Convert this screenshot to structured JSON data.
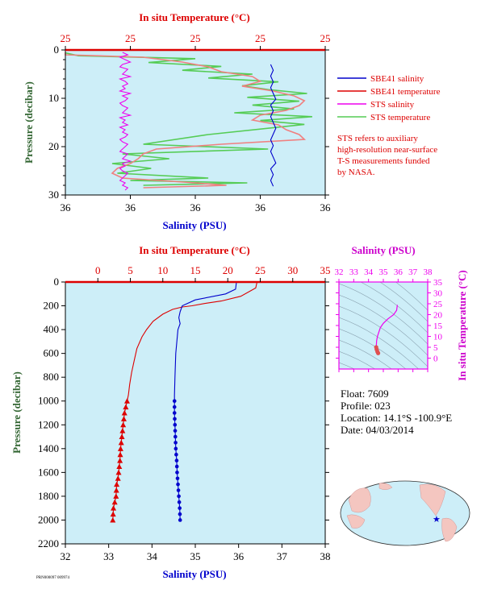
{
  "colors": {
    "plot_bg": "#cdeef8",
    "temp": "#dd0000",
    "sal": "#0000cc",
    "sts_sal": "#ee00ee",
    "sts_temp": "#55cc55",
    "ts_bg": "#cdeef8",
    "pressure_label": "#336633"
  },
  "legend": {
    "sbe41_salinity": "SBE41 salinity",
    "sbe41_temperature": "SBE41 temperature",
    "sts_salinity": "STS salinity",
    "sts_temperature": "STS temperature",
    "note_lines": [
      "STS refers to auxiliary",
      "high-resolution near-surface",
      "T-S measurements funded",
      "by NASA."
    ]
  },
  "info": {
    "float": "Float:  7609",
    "profile": "Profile:  023",
    "location": "Location:  14.1°S  -100.9°E",
    "date": "Date:  04/03/2014"
  },
  "footer_text": "PRN000097 009974",
  "chart_data": [
    {
      "type": "line",
      "id": "top-near-surface",
      "top_axis_label": "In situ Temperature (°C)",
      "top_ticks": [
        "25",
        "25",
        "25",
        "25",
        "25"
      ],
      "xlabel": "Salinity (PSU)",
      "bottom_ticks": [
        "36",
        "36",
        "36",
        "36",
        "36"
      ],
      "ylabel": "Pressure (decibar)",
      "y_ticks": [
        0,
        10,
        20,
        30
      ],
      "ylim": [
        0,
        30
      ],
      "series": [
        {
          "name": "STS salinity",
          "x_frac": [
            0.22,
            0.24,
            0.21,
            0.23,
            0.25,
            0.22,
            0.21,
            0.24,
            0.23,
            0.22,
            0.25,
            0.21,
            0.23,
            0.24,
            0.22,
            0.23,
            0.21,
            0.25,
            0.22,
            0.24,
            0.23,
            0.21,
            0.22,
            0.24,
            0.23,
            0.22,
            0.25,
            0.21,
            0.23,
            0.22,
            0.24,
            0.21,
            0.23,
            0.22,
            0.24,
            0.23,
            0.21,
            0.22,
            0.24,
            0.23,
            0.22,
            0.21,
            0.24,
            0.23,
            0.22,
            0.25,
            0.22,
            0.23,
            0.21,
            0.22,
            0.24,
            0.23,
            0.22,
            0.21,
            0.23,
            0.22,
            0.24,
            0.23
          ],
          "y": [
            0.5,
            1,
            1.5,
            2,
            2.5,
            3,
            3.5,
            4,
            4.5,
            5,
            5.5,
            6,
            6.5,
            7,
            7.5,
            8,
            8.5,
            9,
            9.5,
            10,
            10.5,
            11,
            11.5,
            12,
            12.5,
            13,
            13.5,
            14,
            14.5,
            15,
            15.5,
            16,
            16.5,
            17,
            17.5,
            18,
            18.5,
            19,
            19.5,
            20,
            20.5,
            21,
            21.5,
            22,
            22.5,
            23,
            23.5,
            24,
            24.5,
            25,
            25.5,
            26,
            26.5,
            27,
            27.5,
            28,
            28.5,
            29
          ]
        },
        {
          "name": "SBE41 salinity",
          "x_frac": [
            0.79,
            0.8,
            0.79,
            0.8,
            0.79,
            0.8,
            0.81,
            0.79,
            0.8,
            0.79,
            0.8,
            0.81,
            0.8,
            0.79,
            0.8,
            0.79,
            0.8,
            0.81,
            0.79,
            0.8,
            0.79,
            0.8
          ],
          "y": [
            3,
            4.2,
            5.4,
            6.6,
            7.8,
            9,
            10.2,
            11.4,
            12.6,
            13.8,
            15,
            16.2,
            17.4,
            18.6,
            19.8,
            21,
            22.2,
            23.4,
            24.6,
            25.8,
            27,
            28.2
          ]
        },
        {
          "name": "SBE41 temperature",
          "x_frac": [
            0.0,
            0.0,
            0.3,
            0.45,
            0.55,
            0.6,
            0.72,
            0.75,
            0.68,
            0.8,
            0.88,
            0.92,
            0.9,
            0.85,
            0.75,
            0.72,
            0.82,
            0.85,
            0.9,
            0.92,
            0.6,
            0.35,
            0.3,
            0.28,
            0.25,
            0.2,
            0.18,
            0.22,
            0.5,
            0.62,
            0.3
          ],
          "y": [
            0.5,
            1,
            1.5,
            2.5,
            3.5,
            4.5,
            5.5,
            6.5,
            7.5,
            8.5,
            9.5,
            10.5,
            11.5,
            12.5,
            13.5,
            14.5,
            15.5,
            16.5,
            17.5,
            18.5,
            19.5,
            20.5,
            21.5,
            22.5,
            23.5,
            24.5,
            25.5,
            26.5,
            27.5,
            28,
            28.5
          ]
        },
        {
          "name": "STS temperature",
          "x_frac": [
            0.0,
            0.05,
            0.5,
            0.32,
            0.6,
            0.45,
            0.72,
            0.55,
            0.82,
            0.68,
            0.78,
            0.93,
            0.7,
            0.9,
            0.72,
            0.88,
            0.65,
            0.95,
            0.75,
            0.92,
            0.55,
            0.3,
            0.78,
            0.22,
            0.4,
            0.18,
            0.33,
            0.2,
            0.55,
            0.25,
            0.7,
            0.3
          ],
          "y": [
            0.6,
            1.2,
            1.8,
            2.6,
            3.4,
            4.2,
            5.0,
            5.8,
            6.6,
            7.4,
            8.2,
            9.0,
            9.8,
            10.6,
            11.4,
            12.2,
            13.0,
            13.8,
            14.6,
            15.4,
            17.5,
            19.5,
            20.5,
            21.5,
            22.5,
            23.5,
            24.5,
            25.5,
            26.5,
            27.0,
            27.5,
            28.0
          ]
        }
      ]
    },
    {
      "type": "line",
      "id": "full-profile",
      "top_axis_label": "In situ Temperature (°C)",
      "xlim_temp": [
        -5,
        35
      ],
      "top_ticks": [
        0,
        5,
        10,
        15,
        20,
        25,
        30,
        35
      ],
      "xlabel": "Salinity (PSU)",
      "xlim": [
        32,
        38
      ],
      "bottom_ticks": [
        32,
        33,
        34,
        35,
        36,
        37,
        38
      ],
      "ylabel": "Pressure (decibar)",
      "ylim": [
        0,
        2200
      ],
      "y_ticks": [
        0,
        200,
        400,
        600,
        800,
        1000,
        1200,
        1400,
        1600,
        1800,
        2000,
        2200
      ],
      "series": [
        {
          "name": "SBE41 temperature",
          "x": [
            24.5,
            24.3,
            22.0,
            19.0,
            16.5,
            14.5,
            13.0,
            11.5,
            10.0,
            8.5,
            7.5,
            6.8,
            6.0,
            5.6,
            5.2,
            4.9,
            4.7,
            4.5,
            4.3,
            4.1,
            3.9,
            3.7,
            3.5,
            3.4,
            3.2,
            3.1,
            2.9,
            2.8,
            2.6,
            2.4,
            2.3
          ],
          "y": [
            0,
            50,
            120,
            160,
            180,
            200,
            210,
            230,
            270,
            330,
            400,
            460,
            560,
            660,
            760,
            860,
            950,
            1000,
            1050,
            1100,
            1200,
            1300,
            1400,
            1500,
            1600,
            1650,
            1700,
            1800,
            1850,
            1900,
            2000
          ]
        },
        {
          "name": "SBE41 salinity",
          "x": [
            35.95,
            35.93,
            35.7,
            35.0,
            34.7,
            34.65,
            34.62,
            34.65,
            34.6,
            34.55,
            34.53,
            34.52,
            34.52,
            34.52,
            34.52,
            34.53,
            34.54,
            34.55,
            34.56,
            34.57,
            34.58,
            34.59,
            34.6,
            34.61,
            34.62,
            34.63,
            34.64,
            34.65
          ],
          "y": [
            0,
            60,
            100,
            150,
            200,
            250,
            300,
            350,
            400,
            600,
            800,
            950,
            1000,
            1050,
            1100,
            1200,
            1300,
            1400,
            1450,
            1500,
            1600,
            1650,
            1700,
            1750,
            1800,
            1850,
            1900,
            2000
          ]
        }
      ],
      "markers_temp_pressure": [
        1000,
        1050,
        1100,
        1150,
        1200,
        1250,
        1300,
        1350,
        1400,
        1450,
        1500,
        1550,
        1600,
        1650,
        1700,
        1750,
        1800,
        1850,
        1900,
        1950,
        2000
      ],
      "markers_sal_pressure": [
        1000,
        1050,
        1100,
        1150,
        1200,
        1250,
        1300,
        1350,
        1400,
        1450,
        1500,
        1550,
        1600,
        1650,
        1700,
        1750,
        1800,
        1850,
        1900,
        1950,
        2000
      ]
    },
    {
      "type": "scatter",
      "id": "ts-diagram",
      "xlabel": "Salinity (PSU)",
      "xlim": [
        32,
        38
      ],
      "x_ticks": [
        32,
        33,
        34,
        35,
        36,
        37,
        38
      ],
      "ylabel": "In situ Temperature (°C)",
      "ylim": [
        -5,
        35
      ],
      "y_ticks": [
        0,
        5,
        10,
        15,
        20,
        25,
        30,
        35
      ],
      "series": [
        {
          "name": "T-S",
          "x": [
            35.95,
            35.9,
            35.7,
            35.3,
            35.0,
            34.8,
            34.7,
            34.6,
            34.55,
            34.53,
            34.52,
            34.55,
            34.6,
            34.65
          ],
          "y": [
            24.5,
            22,
            20,
            18,
            16,
            14,
            12,
            10,
            8,
            6,
            5,
            4,
            3,
            2.3
          ]
        }
      ]
    }
  ]
}
